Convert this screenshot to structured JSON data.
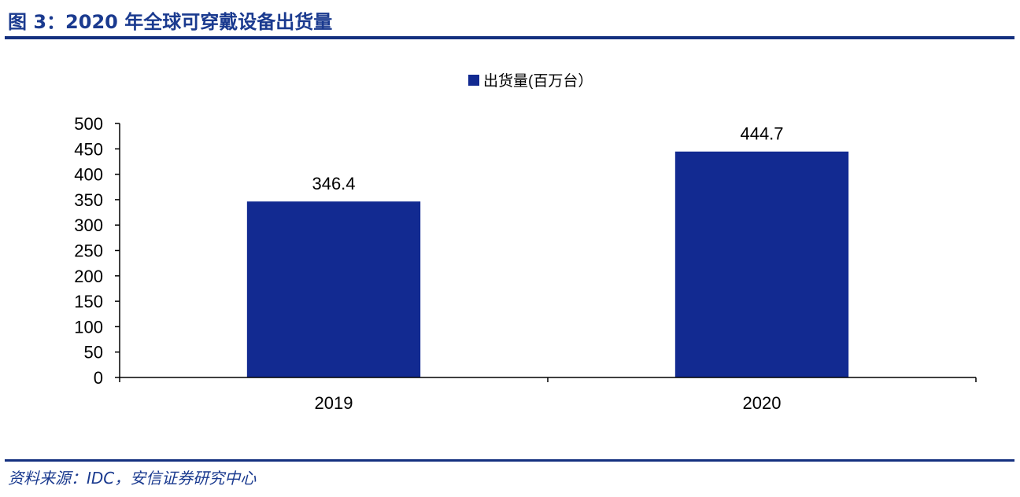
{
  "figure": {
    "title": "图 3：2020 年全球可穿戴设备出货量",
    "source": "资料来源：IDC，安信证券研究中心"
  },
  "colors": {
    "bar": "#122a91",
    "accent": "#14307f",
    "axis": "#000000"
  },
  "chart_data": {
    "type": "bar",
    "categories": [
      "2019",
      "2020"
    ],
    "series": [
      {
        "name": "出货量(百万台）",
        "values": [
          346.4,
          444.7
        ]
      }
    ],
    "data_labels": [
      "346.4",
      "444.7"
    ],
    "ylim": [
      0,
      500
    ],
    "yticks": [
      0,
      50,
      100,
      150,
      200,
      250,
      300,
      350,
      400,
      450,
      500
    ],
    "grid": false,
    "legend_position": "top-center"
  }
}
